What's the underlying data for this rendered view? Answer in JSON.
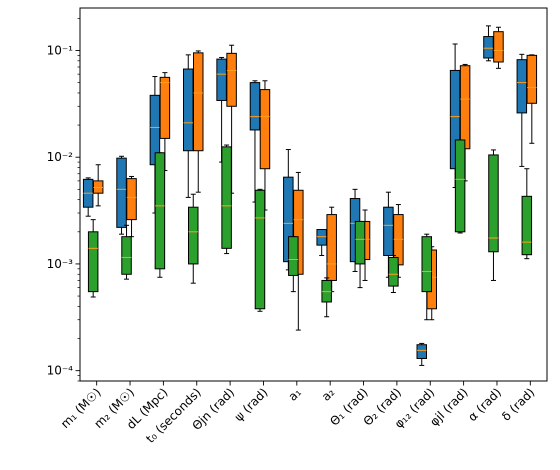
{
  "chart_data": {
    "type": "box",
    "yscale": "log",
    "ylim": [
      8e-05,
      0.25
    ],
    "y_ticks": [
      {
        "value": 0.0001,
        "label": "10⁻⁴"
      },
      {
        "value": 0.001,
        "label": "10⁻³"
      },
      {
        "value": 0.01,
        "label": "10⁻²"
      },
      {
        "value": 0.1,
        "label": "10⁻¹"
      }
    ],
    "categories": [
      "m₁ (M☉)",
      "m₂ (M☉)",
      "dL (Mpc)",
      "t₀ (seconds)",
      "Θjn (rad)",
      "ψ (rad)",
      "a₁",
      "a₂",
      "Θ₁ (rad)",
      "Θ₂ (rad)",
      "φ₁₂ (rad)",
      "φjl (rad)",
      "α (rad)",
      "δ (rad)"
    ],
    "colors": {
      "blue": "#1f77b4",
      "orange": "#ff7f0e",
      "green": "#2ca02c",
      "median": "#ff9f1c"
    },
    "series": [
      {
        "color": "blue",
        "boxes": [
          {
            "wlo": 0.0028,
            "q1": 0.0034,
            "med": 0.0046,
            "q3": 0.0062,
            "whi": 0.0064
          },
          {
            "wlo": 0.0019,
            "q1": 0.0022,
            "med": 0.005,
            "q3": 0.0098,
            "whi": 0.0102
          },
          {
            "wlo": 0.003,
            "q1": 0.0085,
            "med": 0.019,
            "q3": 0.038,
            "whi": 0.057
          },
          {
            "wlo": 0.0042,
            "q1": 0.0115,
            "med": 0.021,
            "q3": 0.067,
            "whi": 0.091
          },
          {
            "wlo": 0.009,
            "q1": 0.034,
            "med": 0.06,
            "q3": 0.083,
            "whi": 0.086
          },
          {
            "wlo": 0.0038,
            "q1": 0.018,
            "med": 0.024,
            "q3": 0.05,
            "whi": 0.052
          },
          {
            "wlo": 0.00088,
            "q1": 0.00105,
            "med": 0.0024,
            "q3": 0.0065,
            "whi": 0.0118
          },
          {
            "wlo": 0.0012,
            "q1": 0.0015,
            "med": 0.0018,
            "q3": 0.0021,
            "whi": 0.0021
          },
          {
            "wlo": 0.00085,
            "q1": 0.00105,
            "med": 0.0024,
            "q3": 0.0041,
            "whi": 0.005
          },
          {
            "wlo": 0.00075,
            "q1": 0.0012,
            "med": 0.0023,
            "q3": 0.0034,
            "whi": 0.0047
          },
          {
            "wlo": 0.000112,
            "q1": 0.00013,
            "med": 0.000155,
            "q3": 0.000175,
            "whi": 0.00018
          },
          {
            "wlo": 0.0052,
            "q1": 0.0078,
            "med": 0.024,
            "q3": 0.065,
            "whi": 0.115
          },
          {
            "wlo": 0.08,
            "q1": 0.085,
            "med": 0.105,
            "q3": 0.135,
            "whi": 0.17
          },
          {
            "wlo": 0.0082,
            "q1": 0.026,
            "med": 0.05,
            "q3": 0.082,
            "whi": 0.092
          }
        ]
      },
      {
        "color": "orange",
        "boxes": [
          {
            "wlo": 0.0035,
            "q1": 0.0046,
            "med": 0.0052,
            "q3": 0.006,
            "whi": 0.0085
          },
          {
            "wlo": 0.0018,
            "q1": 0.0026,
            "med": 0.0042,
            "q3": 0.0063,
            "whi": 0.0066
          },
          {
            "wlo": 0.0075,
            "q1": 0.015,
            "med": 0.05,
            "q3": 0.056,
            "whi": 0.062
          },
          {
            "wlo": 0.0047,
            "q1": 0.0115,
            "med": 0.04,
            "q3": 0.095,
            "whi": 0.099
          },
          {
            "wlo": 0.0046,
            "q1": 0.03,
            "med": 0.065,
            "q3": 0.094,
            "whi": 0.112
          },
          {
            "wlo": 0.0032,
            "q1": 0.0078,
            "med": 0.024,
            "q3": 0.043,
            "whi": 0.052
          },
          {
            "wlo": 0.00024,
            "q1": 0.0008,
            "med": 0.0026,
            "q3": 0.0049,
            "whi": 0.0072
          },
          {
            "wlo": 0.00055,
            "q1": 0.0007,
            "med": 0.001,
            "q3": 0.0029,
            "whi": 0.0034
          },
          {
            "wlo": 0.0007,
            "q1": 0.0011,
            "med": 0.0017,
            "q3": 0.0025,
            "whi": 0.0032
          },
          {
            "wlo": 0.00075,
            "q1": 0.00098,
            "med": 0.0017,
            "q3": 0.0029,
            "whi": 0.0036
          },
          {
            "wlo": 0.0003,
            "q1": 0.00038,
            "med": 0.00075,
            "q3": 0.00135,
            "whi": 0.00145
          },
          {
            "wlo": 0.006,
            "q1": 0.012,
            "med": 0.035,
            "q3": 0.072,
            "whi": 0.074
          },
          {
            "wlo": 0.068,
            "q1": 0.078,
            "med": 0.1,
            "q3": 0.15,
            "whi": 0.165
          },
          {
            "wlo": 0.0135,
            "q1": 0.032,
            "med": 0.045,
            "q3": 0.09,
            "whi": 0.091
          }
        ]
      },
      {
        "color": "green",
        "boxes": [
          {
            "wlo": 0.00049,
            "q1": 0.00055,
            "med": 0.0014,
            "q3": 0.002,
            "whi": 0.0026
          },
          {
            "wlo": 0.00072,
            "q1": 0.0008,
            "med": 0.00115,
            "q3": 0.0018,
            "whi": 0.0023
          },
          {
            "wlo": 0.00075,
            "q1": 0.0009,
            "med": 0.0035,
            "q3": 0.011,
            "whi": 0.011
          },
          {
            "wlo": 0.00066,
            "q1": 0.001,
            "med": 0.002,
            "q3": 0.0034,
            "whi": 0.0045
          },
          {
            "wlo": 0.00125,
            "q1": 0.0014,
            "med": 0.0035,
            "q3": 0.0125,
            "whi": 0.013
          },
          {
            "wlo": 0.00036,
            "q1": 0.00038,
            "med": 0.0027,
            "q3": 0.0049,
            "whi": 0.005
          },
          {
            "wlo": 0.00055,
            "q1": 0.00078,
            "med": 0.0011,
            "q3": 0.0018,
            "whi": 0.0018
          },
          {
            "wlo": 0.00032,
            "q1": 0.00044,
            "med": 0.00055,
            "q3": 0.0007,
            "whi": 0.00074
          },
          {
            "wlo": 0.0006,
            "q1": 0.001,
            "med": 0.0017,
            "q3": 0.0025,
            "whi": 0.0025
          },
          {
            "wlo": 0.00054,
            "q1": 0.00062,
            "med": 0.0008,
            "q3": 0.00115,
            "whi": 0.0012
          },
          {
            "wlo": 0.0003,
            "q1": 0.00055,
            "med": 0.00085,
            "q3": 0.0018,
            "whi": 0.0019
          },
          {
            "wlo": 0.00195,
            "q1": 0.002,
            "med": 0.0062,
            "q3": 0.0145,
            "whi": 0.0145
          },
          {
            "wlo": 0.0007,
            "q1": 0.0013,
            "med": 0.00175,
            "q3": 0.0105,
            "whi": 0.0117
          },
          {
            "wlo": 0.00112,
            "q1": 0.00122,
            "med": 0.0016,
            "q3": 0.0043,
            "whi": 0.0078
          }
        ]
      }
    ]
  }
}
